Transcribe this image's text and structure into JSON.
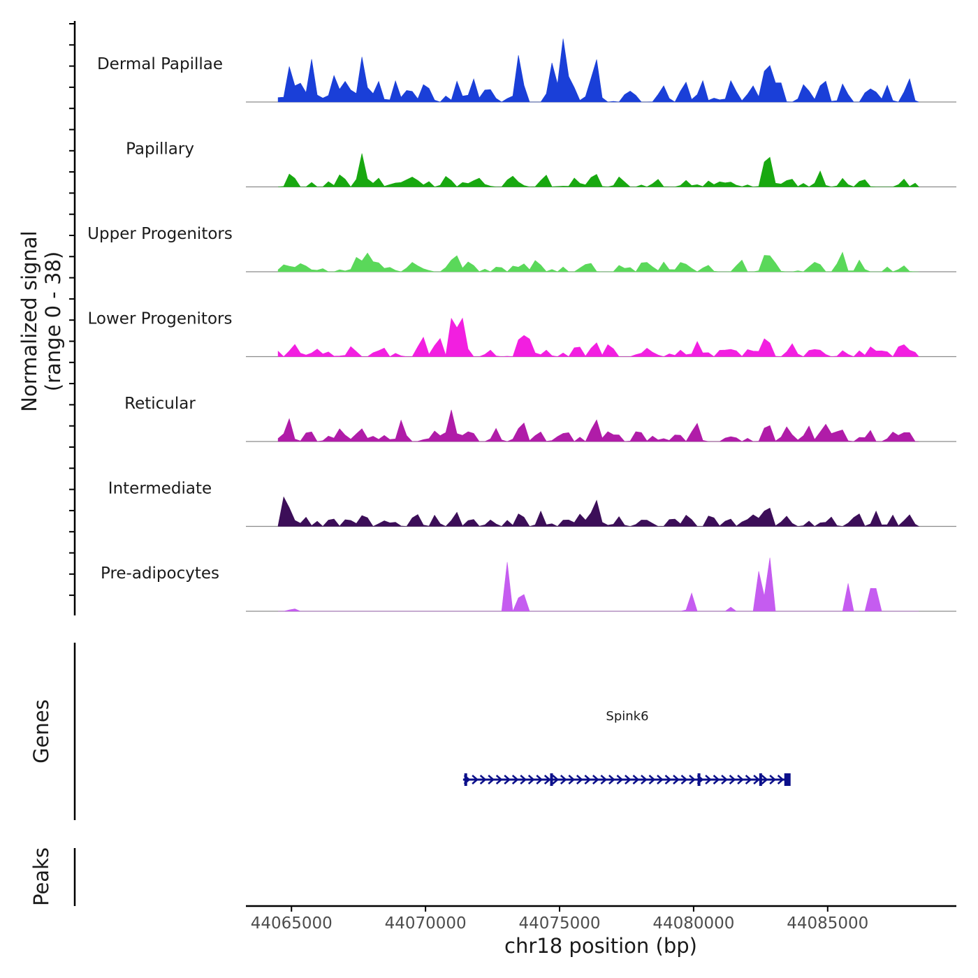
{
  "chart_data": {
    "type": "area",
    "title": "",
    "xlabel": "chr18 position (bp)",
    "ylabel_line1": "Normalized signal",
    "ylabel_line2": "(range 0 - 38)",
    "ylim": [
      0,
      38
    ],
    "xlim": [
      44063300,
      44089800
    ],
    "x_ticks": [
      44065000,
      44070000,
      44075000,
      44080000,
      44085000
    ],
    "x_tick_labels": [
      "44065000",
      "44070000",
      "44075000",
      "44080000",
      "44085000"
    ],
    "genes_label": "Genes",
    "peaks_label": "Peaks",
    "tracks": [
      {
        "name": "Dermal Papillae",
        "color": "#1a3fd8",
        "scale": 0.95,
        "peaks": [
          [
            44064950,
            20
          ],
          [
            44065300,
            12
          ],
          [
            44065750,
            26
          ],
          [
            44066650,
            16
          ],
          [
            44067100,
            12
          ],
          [
            44067650,
            28
          ],
          [
            44068200,
            14
          ],
          [
            44068900,
            12
          ],
          [
            44069400,
            10
          ],
          [
            44070000,
            8
          ],
          [
            44071200,
            12
          ],
          [
            44071800,
            14
          ],
          [
            44072300,
            10
          ],
          [
            44073500,
            30
          ],
          [
            44074700,
            24
          ],
          [
            44075100,
            40
          ],
          [
            44075400,
            18
          ],
          [
            44076300,
            28
          ],
          [
            44077700,
            8
          ],
          [
            44078900,
            10
          ],
          [
            44079700,
            12
          ],
          [
            44080300,
            14
          ],
          [
            44081400,
            12
          ],
          [
            44082200,
            8
          ],
          [
            44082750,
            32
          ],
          [
            44083150,
            12
          ],
          [
            44084200,
            10
          ],
          [
            44084850,
            14
          ],
          [
            44085600,
            12
          ],
          [
            44086600,
            8
          ],
          [
            44087200,
            8
          ],
          [
            44088000,
            16
          ]
        ],
        "noise": 0.08
      },
      {
        "name": "Papillary",
        "color": "#18a810",
        "scale": 0.95,
        "peaks": [
          [
            44065000,
            10
          ],
          [
            44066800,
            6
          ],
          [
            44067650,
            20
          ],
          [
            44068200,
            6
          ],
          [
            44069500,
            6
          ],
          [
            44070800,
            6
          ],
          [
            44071900,
            6
          ],
          [
            44073200,
            6
          ],
          [
            44074400,
            6
          ],
          [
            44075600,
            6
          ],
          [
            44076300,
            10
          ],
          [
            44077200,
            4
          ],
          [
            44078600,
            4
          ],
          [
            44079700,
            4
          ],
          [
            44080600,
            4
          ],
          [
            44081300,
            4
          ],
          [
            44082750,
            26
          ],
          [
            44083600,
            6
          ],
          [
            44084700,
            8
          ],
          [
            44085600,
            4
          ],
          [
            44086300,
            6
          ],
          [
            44087800,
            4
          ]
        ],
        "noise": 0.06
      },
      {
        "name": "Upper Progenitors",
        "color": "#5ad85a",
        "scale": 0.95,
        "peaks": [
          [
            44064800,
            6
          ],
          [
            44065400,
            6
          ],
          [
            44067500,
            10
          ],
          [
            44067900,
            10
          ],
          [
            44068300,
            6
          ],
          [
            44069600,
            6
          ],
          [
            44071100,
            12
          ],
          [
            44071600,
            6
          ],
          [
            44073600,
            6
          ],
          [
            44074200,
            6
          ],
          [
            44076100,
            6
          ],
          [
            44077300,
            4
          ],
          [
            44078200,
            6
          ],
          [
            44078900,
            6
          ],
          [
            44079600,
            8
          ],
          [
            44080500,
            4
          ],
          [
            44081700,
            6
          ],
          [
            44082750,
            14
          ],
          [
            44083000,
            6
          ],
          [
            44084600,
            6
          ],
          [
            44085500,
            10
          ],
          [
            44086200,
            6
          ],
          [
            44087800,
            4
          ]
        ],
        "noise": 0.06
      },
      {
        "name": "Lower Progenitors",
        "color": "#f21fe0",
        "scale": 0.95,
        "peaks": [
          [
            44065100,
            6
          ],
          [
            44065900,
            4
          ],
          [
            44067200,
            4
          ],
          [
            44068300,
            4
          ],
          [
            44069900,
            12
          ],
          [
            44070500,
            12
          ],
          [
            44071050,
            32
          ],
          [
            44071400,
            20
          ],
          [
            44072400,
            4
          ],
          [
            44073600,
            16
          ],
          [
            44073900,
            10
          ],
          [
            44074500,
            4
          ],
          [
            44075700,
            6
          ],
          [
            44076300,
            10
          ],
          [
            44076800,
            6
          ],
          [
            44078200,
            4
          ],
          [
            44079500,
            4
          ],
          [
            44080100,
            6
          ],
          [
            44081300,
            6
          ],
          [
            44082100,
            6
          ],
          [
            44082750,
            12
          ],
          [
            44083600,
            6
          ],
          [
            44084600,
            6
          ],
          [
            44085600,
            4
          ],
          [
            44086600,
            6
          ],
          [
            44087800,
            8
          ]
        ],
        "noise": 0.07
      },
      {
        "name": "Reticular",
        "color": "#b01ca8",
        "scale": 0.95,
        "peaks": [
          [
            44064900,
            12
          ],
          [
            44065600,
            6
          ],
          [
            44066900,
            6
          ],
          [
            44067600,
            8
          ],
          [
            44068500,
            4
          ],
          [
            44069100,
            12
          ],
          [
            44070300,
            6
          ],
          [
            44071000,
            16
          ],
          [
            44071600,
            6
          ],
          [
            44072600,
            6
          ],
          [
            44073600,
            14
          ],
          [
            44074200,
            6
          ],
          [
            44075200,
            6
          ],
          [
            44076300,
            14
          ],
          [
            44076800,
            6
          ],
          [
            44078000,
            6
          ],
          [
            44079300,
            4
          ],
          [
            44080100,
            8
          ],
          [
            44081300,
            4
          ],
          [
            44082750,
            14
          ],
          [
            44083400,
            6
          ],
          [
            44084300,
            8
          ],
          [
            44084900,
            8
          ],
          [
            44085500,
            8
          ],
          [
            44086500,
            4
          ],
          [
            44087400,
            6
          ],
          [
            44087900,
            6
          ]
        ],
        "noise": 0.07
      },
      {
        "name": "Intermediate",
        "color": "#3c0e58",
        "scale": 0.95,
        "peaks": [
          [
            44064800,
            20
          ],
          [
            44065500,
            6
          ],
          [
            44066500,
            6
          ],
          [
            44067100,
            6
          ],
          [
            44067700,
            6
          ],
          [
            44068400,
            4
          ],
          [
            44069700,
            6
          ],
          [
            44070400,
            4
          ],
          [
            44071100,
            8
          ],
          [
            44071700,
            6
          ],
          [
            44072400,
            4
          ],
          [
            44073500,
            8
          ],
          [
            44074300,
            6
          ],
          [
            44075700,
            6
          ],
          [
            44076300,
            16
          ],
          [
            44077200,
            6
          ],
          [
            44078300,
            4
          ],
          [
            44079200,
            6
          ],
          [
            44079800,
            8
          ],
          [
            44080700,
            6
          ],
          [
            44081300,
            6
          ],
          [
            44082300,
            4
          ],
          [
            44082750,
            16
          ],
          [
            44083500,
            6
          ],
          [
            44085100,
            6
          ],
          [
            44086100,
            6
          ],
          [
            44086800,
            6
          ],
          [
            44087400,
            4
          ],
          [
            44088100,
            4
          ]
        ],
        "noise": 0.07
      },
      {
        "name": "Pre-adipocytes",
        "color": "#c55cf0",
        "scale": 0.95,
        "peaks": [
          [
            44065000,
            14
          ],
          [
            44065200,
            14
          ],
          [
            44072950,
            14
          ],
          [
            44073050,
            30
          ],
          [
            44073500,
            14
          ],
          [
            44073700,
            14
          ],
          [
            44079800,
            14
          ],
          [
            44079950,
            14
          ],
          [
            44081300,
            14
          ],
          [
            44081450,
            14
          ],
          [
            44082450,
            30
          ],
          [
            44082700,
            50
          ],
          [
            44082800,
            72
          ],
          [
            44085800,
            30
          ],
          [
            44086600,
            14
          ],
          [
            44086800,
            14
          ]
        ],
        "noise": 0
      }
    ],
    "gene": {
      "name": "Spink6",
      "start": 44071400,
      "end": 44083600,
      "exons": [
        44071500,
        44074700,
        44080200,
        44082500,
        44083500
      ],
      "color": "#0b0f8a"
    }
  }
}
